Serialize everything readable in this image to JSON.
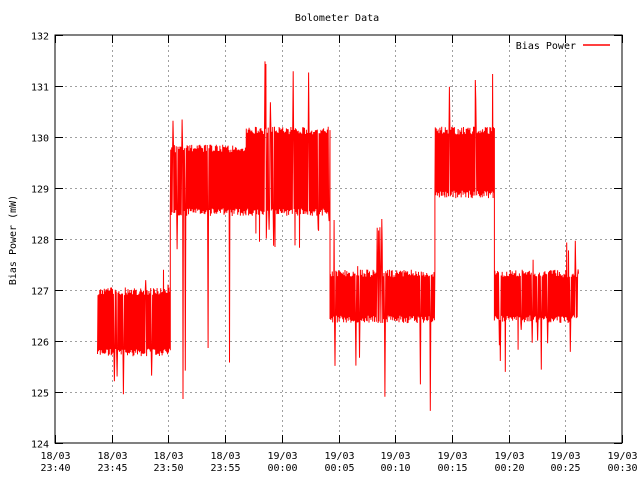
{
  "colors": {
    "series": "#ff0000",
    "grid": "#a0a0a0",
    "axis": "#000000",
    "background": "#ffffff"
  },
  "chart_data": {
    "type": "line",
    "title": "Bolometer Data",
    "xlabel": "",
    "ylabel": "Bias Power (mW)",
    "ylim": [
      124,
      132
    ],
    "yticks": [
      124,
      125,
      126,
      127,
      128,
      129,
      130,
      131,
      132
    ],
    "xticks": [
      "18/03 23:40",
      "18/03 23:45",
      "18/03 23:50",
      "18/03 23:55",
      "19/03 00:00",
      "19/03 00:05",
      "19/03 00:10",
      "19/03 00:15",
      "19/03 00:20",
      "19/03 00:25",
      "19/03 00:30"
    ],
    "xlim": [
      "18/03 23:40",
      "19/03 00:30"
    ],
    "grid": true,
    "legend_position": "top-right",
    "series": [
      {
        "name": "Bias Power",
        "color": "#ff0000",
        "segments": [
          {
            "start": "18/03 23:43:45",
            "end": "18/03 23:50:10",
            "low": 125.7,
            "high": 127.05,
            "min": 124.6,
            "max": 127.4
          },
          {
            "start": "18/03 23:50:10",
            "end": "18/03 23:56:50",
            "low": 128.45,
            "high": 129.85,
            "min": 124.3,
            "max": 130.55
          },
          {
            "start": "18/03 23:56:50",
            "end": "19/03 00:04:15",
            "low": 128.45,
            "high": 130.2,
            "min": 127.8,
            "max": 131.6
          },
          {
            "start": "19/03 00:04:15",
            "end": "19/03 00:13:30",
            "low": 126.35,
            "high": 127.4,
            "min": 124.6,
            "max": 128.45
          },
          {
            "start": "19/03 00:13:30",
            "end": "19/03 00:18:45",
            "low": 128.8,
            "high": 130.2,
            "min": 127.75,
            "max": 131.25
          },
          {
            "start": "19/03 00:18:45",
            "end": "19/03 00:26:10",
            "low": 126.35,
            "high": 127.4,
            "min": 125.3,
            "max": 128.45
          }
        ]
      }
    ]
  }
}
